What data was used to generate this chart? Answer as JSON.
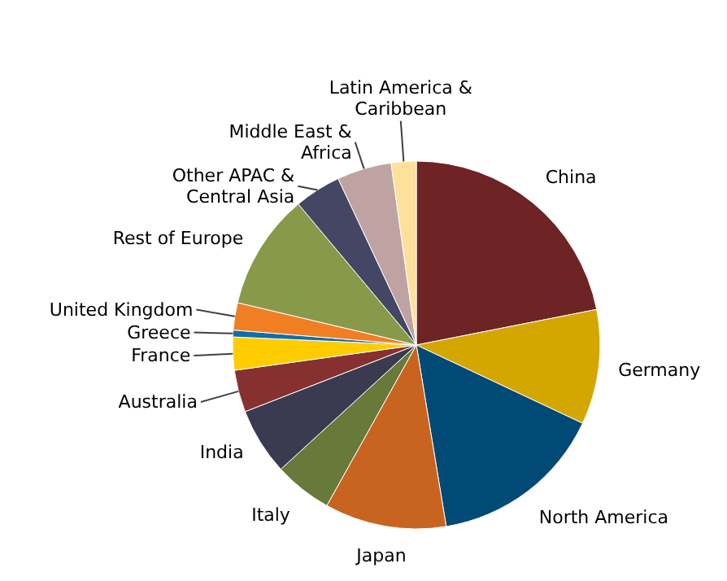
{
  "chart_data": {
    "type": "pie",
    "categories": [
      "China",
      "Germany",
      "North America",
      "Japan",
      "Italy",
      "India",
      "Australia",
      "France",
      "Greece",
      "United Kingdom",
      "Rest of Europe",
      "Other APAC & Central Asia",
      "Middle East & Africa",
      "Latin America & Caribbean"
    ],
    "values": [
      21.9,
      10.1,
      15.4,
      10.7,
      5.1,
      5.9,
      3.7,
      2.9,
      0.6,
      2.4,
      10.2,
      4.1,
      4.8,
      2.2
    ],
    "colors": [
      "#6e2324",
      "#d4a600",
      "#004a75",
      "#c8641f",
      "#677a3a",
      "#3a3a50",
      "#873030",
      "#ffcc00",
      "#0f6fa8",
      "#f07f24",
      "#889a4a",
      "#434763",
      "#bfa3a3",
      "#fde09b"
    ]
  }
}
